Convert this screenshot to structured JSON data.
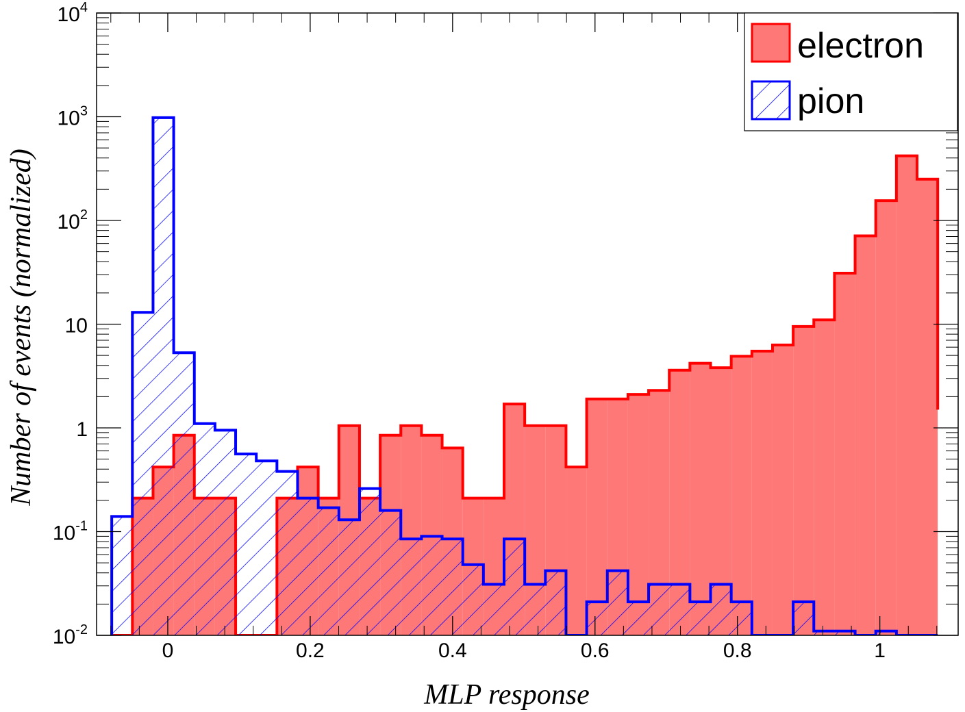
{
  "chart_data": {
    "type": "bar",
    "xlabel": "MLP response",
    "ylabel": "Number of events (normalized)",
    "xlim": [
      -0.1,
      1.11
    ],
    "ylim": [
      0.01,
      10000
    ],
    "y_scale": "log",
    "grid": false,
    "legend_position": "top-right",
    "x_ticks": [
      {
        "value": 0,
        "label": "0"
      },
      {
        "value": 0.2,
        "label": "0.2"
      },
      {
        "value": 0.4,
        "label": "0.4"
      },
      {
        "value": 0.6,
        "label": "0.6"
      },
      {
        "value": 0.8,
        "label": "0.8"
      },
      {
        "value": 1,
        "label": "1"
      }
    ],
    "y_ticks": [
      {
        "value": 0.01,
        "base": "10",
        "exp": "-2"
      },
      {
        "value": 0.1,
        "base": "10",
        "exp": "-1"
      },
      {
        "value": 1,
        "base": "1",
        "exp": ""
      },
      {
        "value": 10,
        "base": "10",
        "exp": ""
      },
      {
        "value": 100,
        "base": "10",
        "exp": "2"
      },
      {
        "value": 1000,
        "base": "10",
        "exp": "3"
      },
      {
        "value": 10000,
        "base": "10",
        "exp": "4"
      }
    ],
    "bin_edges": [
      -0.0787,
      -0.0497,
      -0.0207,
      0.0083,
      0.0373,
      0.0663,
      0.0953,
      0.1243,
      0.1533,
      0.1823,
      0.2113,
      0.2403,
      0.2693,
      0.2983,
      0.3273,
      0.3563,
      0.3853,
      0.4143,
      0.4433,
      0.4723,
      0.5013,
      0.5303,
      0.5593,
      0.5883,
      0.6173,
      0.6463,
      0.6753,
      0.7043,
      0.7333,
      0.7623,
      0.7913,
      0.8203,
      0.8493,
      0.8783,
      0.9073,
      0.9363,
      0.9653,
      0.9943,
      1.0233,
      1.0523,
      1.0813
    ],
    "series": [
      {
        "name": "electron",
        "style": "filled",
        "line_color": "#ff0000",
        "fill_color": "#ff7878",
        "values": [
          0,
          0.21,
          0.42,
          0.85,
          0.21,
          0.21,
          0,
          0,
          0.21,
          0.42,
          0.21,
          1.05,
          0.21,
          0.85,
          1.05,
          0.85,
          0.64,
          0.21,
          0.21,
          1.7,
          1.05,
          1.05,
          0.42,
          1.9,
          1.9,
          2.1,
          2.3,
          3.6,
          4.2,
          3.8,
          4.9,
          5.5,
          6.3,
          9.5,
          11,
          31,
          71,
          155,
          420,
          250,
          1.5
        ]
      },
      {
        "name": "pion",
        "style": "hatched",
        "line_color": "#0000ff",
        "fill_color": "none",
        "values": [
          0.14,
          13,
          980,
          5.3,
          1.1,
          0.95,
          0.56,
          0.48,
          0.38,
          0.21,
          0.17,
          0.13,
          0.26,
          0.16,
          0.085,
          0.09,
          0.085,
          0.048,
          0.031,
          0.085,
          0.031,
          0.042,
          0.01,
          0.021,
          0.042,
          0.021,
          0.031,
          0.031,
          0.021,
          0.031,
          0.021,
          0.01,
          0.01,
          0.021,
          0.011,
          0.011,
          0.01,
          0.011,
          0.01,
          0.01,
          0.01
        ]
      }
    ]
  }
}
